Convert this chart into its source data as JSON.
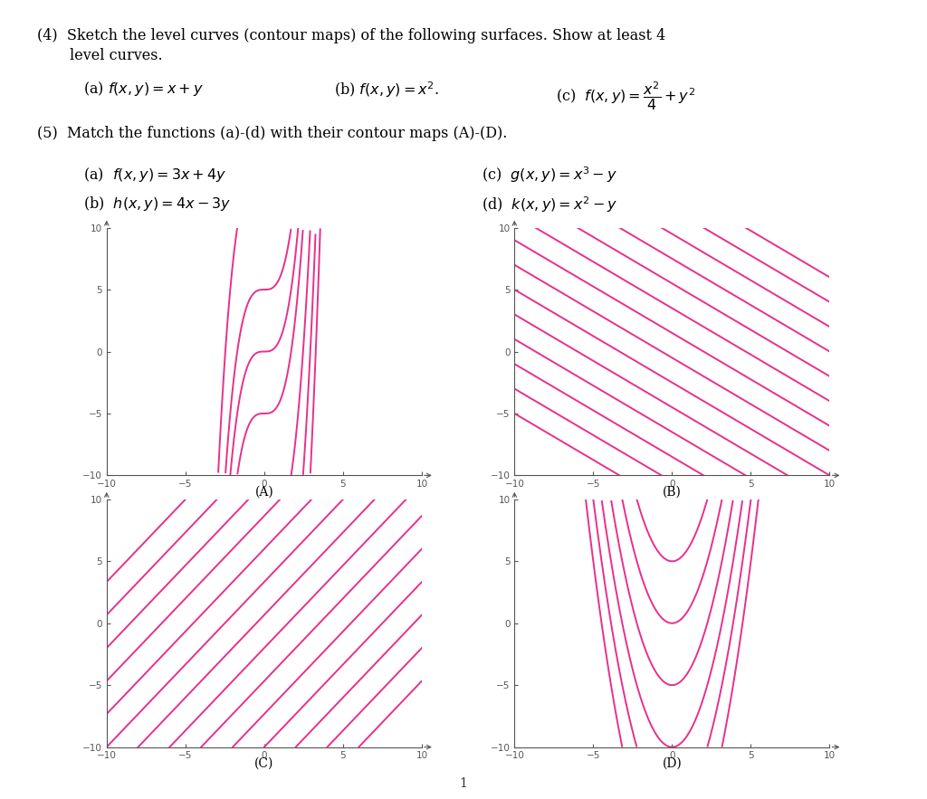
{
  "background_color": "#ffffff",
  "pink_color": "#e8308a",
  "line_width": 1.4,
  "axis_color": "#555555",
  "tick_color": "#555555",
  "xlim": [
    -10,
    10
  ],
  "ylim": [
    -10,
    10
  ],
  "xticks": [
    -10,
    -5,
    0,
    5,
    10
  ],
  "yticks": [
    -10,
    -5,
    0,
    5,
    10
  ],
  "plot_labels": [
    "(A)",
    "(B)",
    "(C)",
    "(D)"
  ]
}
